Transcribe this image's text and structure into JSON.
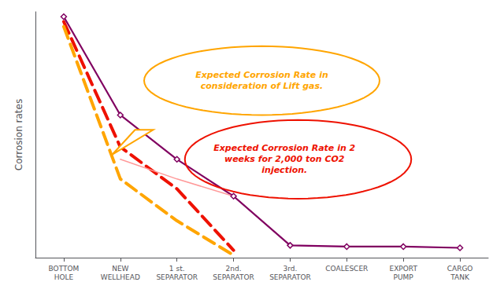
{
  "chart_data": {
    "type": "line",
    "categories": [
      "BOTTOM\nHOLE",
      "NEW\nWELLHEAD",
      "1 st.\nSEPARATOR",
      "2nd.\nSEPARATOR",
      "3rd.\nSEPARATOR",
      "COALESCER",
      "EXPORT\nPUMP",
      "CARGO\nTANK"
    ],
    "series": [
      {
        "color": "#800060",
        "line_style": "solid",
        "marker": "diamond",
        "values": [
          9.8,
          5.8,
          4.0,
          2.5,
          0.5,
          0.45,
          0.45,
          0.4
        ]
      },
      {
        "color": "#EE1100",
        "line_style": "dashed",
        "marker": "none",
        "values": [
          9.6,
          4.5,
          2.8,
          0.3,
          null,
          null,
          null,
          null
        ]
      },
      {
        "color": "#FFA500",
        "line_style": "dashed",
        "marker": "none",
        "values": [
          9.4,
          3.2,
          1.5,
          0.1,
          null,
          null,
          null,
          null
        ]
      },
      {
        "color": "#FF9999",
        "line_style": "solid",
        "marker": "none",
        "values": [
          null,
          4.0,
          3.2,
          2.5,
          null,
          null,
          null,
          null
        ]
      }
    ],
    "ylabel": "Corrosion rates",
    "ylim": [
      0,
      10
    ],
    "yticks": [],
    "grid": false,
    "tick_labels": "x",
    "annotations": [
      {
        "text": "Expected Corrosion Rate in\nconsideration of Lift gas.",
        "color": "#FFA500"
      },
      {
        "text": "Expected Corrosion Rate in 2\nweeks for 2,000 ton CO2\ninjection.",
        "color": "#EE1100"
      }
    ]
  }
}
